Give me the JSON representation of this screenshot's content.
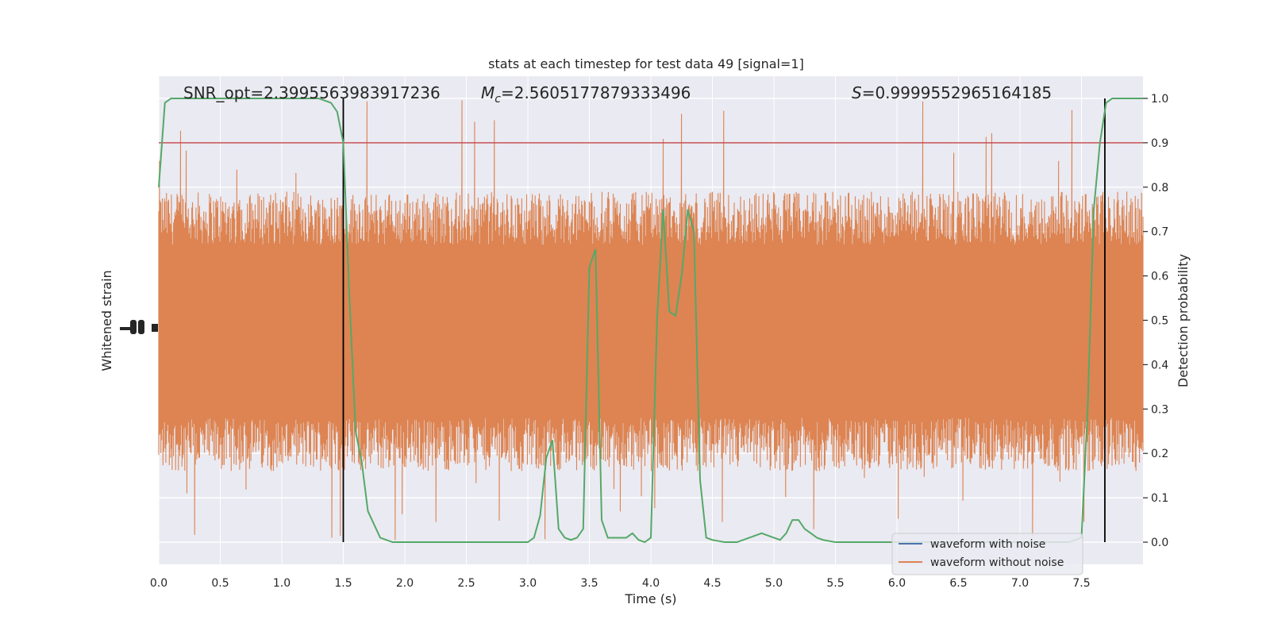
{
  "chart_data": {
    "type": "line",
    "title": "stats at each timestep for test data 49 [signal=1]",
    "xlabel": "Time (s)",
    "ylabel_left": "Whitened strain",
    "ylabel_right": "Detection probability",
    "xlim": [
      0,
      8
    ],
    "ylim_right": [
      -0.05,
      1.05
    ],
    "x_ticks": [
      "0.0",
      "0.5",
      "1.0",
      "1.5",
      "2.0",
      "2.5",
      "3.0",
      "3.5",
      "4.0",
      "4.5",
      "5.0",
      "5.5",
      "6.0",
      "6.5",
      "7.0",
      "7.5"
    ],
    "y_right_ticks": [
      "0.0",
      "0.1",
      "0.2",
      "0.3",
      "0.4",
      "0.5",
      "0.6",
      "0.7",
      "0.8",
      "0.9",
      "1.0"
    ],
    "grid": true,
    "annotations": {
      "snr": "SNR_opt=2.3995563983917236",
      "mc_symbol": "M",
      "mc_sub": "c",
      "mc_value": "=2.5605177879333496",
      "s_symbol": "S",
      "s_value": "=0.9999552965164185"
    },
    "threshold": 0.9,
    "vlines": [
      1.5,
      7.69
    ],
    "legend": {
      "position": "lower-right",
      "entries": [
        "waveform with noise",
        "waveform without noise"
      ]
    },
    "colors": {
      "noise": "#4c72b0",
      "no_noise": "#dd8452",
      "probability": "#55a868",
      "threshold": "#c44e52",
      "vline": "#000000",
      "background": "#eaeaf2",
      "grid": "#ffffff"
    },
    "probability_series": {
      "name": "",
      "x": [
        0.0,
        0.05,
        0.1,
        0.2,
        0.4,
        0.6,
        0.8,
        1.0,
        1.2,
        1.3,
        1.4,
        1.45,
        1.5,
        1.55,
        1.6,
        1.65,
        1.7,
        1.8,
        1.9,
        2.0,
        2.2,
        2.4,
        2.6,
        2.8,
        2.9,
        3.0,
        3.05,
        3.1,
        3.15,
        3.2,
        3.25,
        3.3,
        3.35,
        3.4,
        3.45,
        3.5,
        3.55,
        3.6,
        3.65,
        3.7,
        3.8,
        3.85,
        3.9,
        3.95,
        4.0,
        4.05,
        4.1,
        4.15,
        4.2,
        4.25,
        4.3,
        4.35,
        4.4,
        4.45,
        4.5,
        4.6,
        4.7,
        4.8,
        4.9,
        5.0,
        5.05,
        5.1,
        5.15,
        5.2,
        5.25,
        5.3,
        5.35,
        5.4,
        5.5,
        5.7,
        5.9,
        6.0,
        6.2,
        6.5,
        6.8,
        7.0,
        7.2,
        7.4,
        7.5,
        7.55,
        7.6,
        7.65,
        7.7,
        7.75,
        7.8,
        7.9,
        8.0
      ],
      "y": [
        0.8,
        0.99,
        1.0,
        1.0,
        1.0,
        1.0,
        1.0,
        1.0,
        1.0,
        1.0,
        0.99,
        0.97,
        0.9,
        0.55,
        0.25,
        0.18,
        0.07,
        0.01,
        0.0,
        0.0,
        0.0,
        0.0,
        0.0,
        0.0,
        0.0,
        0.0,
        0.01,
        0.06,
        0.19,
        0.23,
        0.03,
        0.01,
        0.005,
        0.01,
        0.03,
        0.62,
        0.66,
        0.05,
        0.01,
        0.01,
        0.01,
        0.02,
        0.005,
        0.0,
        0.01,
        0.5,
        0.75,
        0.52,
        0.51,
        0.6,
        0.75,
        0.7,
        0.14,
        0.01,
        0.005,
        0.0,
        0.0,
        0.01,
        0.02,
        0.01,
        0.005,
        0.02,
        0.05,
        0.05,
        0.03,
        0.02,
        0.01,
        0.005,
        0.0,
        0.0,
        0.0,
        0.0,
        0.0,
        0.0,
        0.0,
        0.0,
        0.0,
        0.0,
        0.01,
        0.3,
        0.75,
        0.9,
        0.99,
        1.0,
        1.0,
        1.0,
        1.0
      ]
    },
    "noise_envelope": {
      "typical_low": 0.22,
      "typical_high": 0.73,
      "extreme_low": 0.0,
      "extreme_high": 1.0
    }
  }
}
